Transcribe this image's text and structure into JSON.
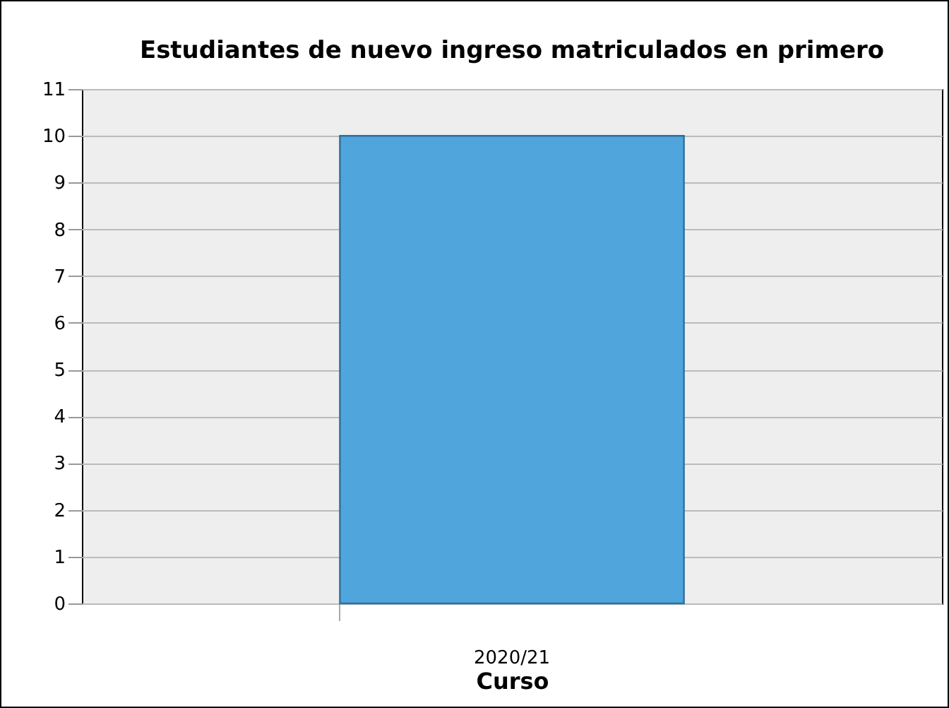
{
  "chart_data": {
    "type": "bar",
    "title": "Estudiantes de nuevo ingreso matriculados en primero",
    "xlabel": "Curso",
    "categories": [
      "2020/21"
    ],
    "values": [
      10
    ],
    "color": "#4fa5dc",
    "ylim": [
      0,
      11
    ],
    "yticks": [
      0,
      1,
      2,
      3,
      4,
      5,
      6,
      7,
      8,
      9,
      10,
      11
    ],
    "grid": "y"
  }
}
